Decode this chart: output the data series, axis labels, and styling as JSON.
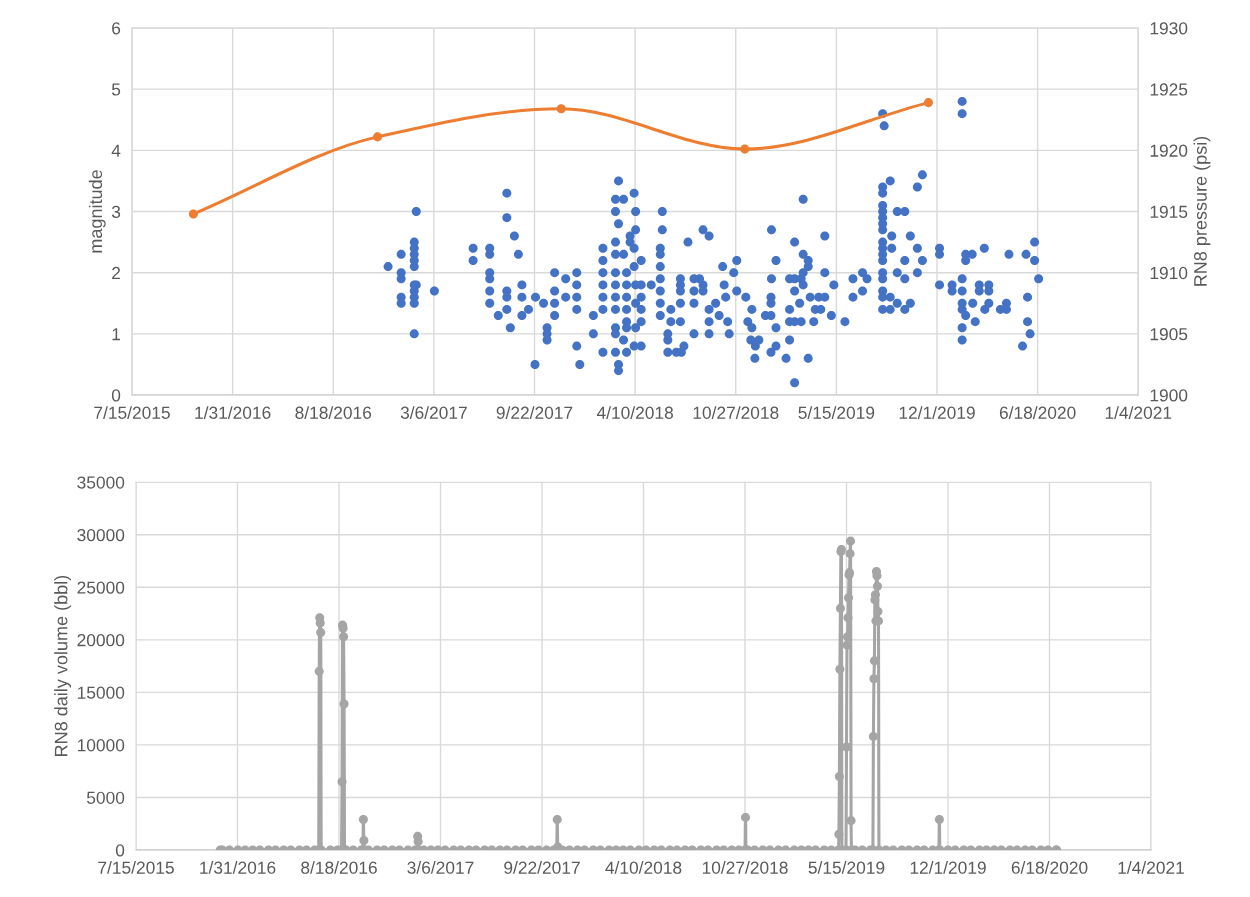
{
  "chart_data": [
    {
      "type": "scatter",
      "ylabel": "magnitude",
      "y2label": "RN8 pressure (psi)",
      "grid": true,
      "xlim": [
        "2015-07-15",
        "2021-01-04"
      ],
      "xticks": [
        {
          "value": "2015-07-15",
          "label": "7/15/2015"
        },
        {
          "value": "2016-01-31",
          "label": "1/31/2016"
        },
        {
          "value": "2016-08-18",
          "label": "8/18/2016"
        },
        {
          "value": "2017-03-06",
          "label": "3/6/2017"
        },
        {
          "value": "2017-09-22",
          "label": "9/22/2017"
        },
        {
          "value": "2018-04-10",
          "label": "4/10/2018"
        },
        {
          "value": "2018-10-27",
          "label": "10/27/2018"
        },
        {
          "value": "2019-05-15",
          "label": "5/15/2019"
        },
        {
          "value": "2019-12-01",
          "label": "12/1/2019"
        },
        {
          "value": "2020-06-18",
          "label": "6/18/2020"
        },
        {
          "value": "2021-01-04",
          "label": "1/4/2021"
        }
      ],
      "ylim": [
        0,
        6
      ],
      "yticks": [
        0,
        1,
        2,
        3,
        4,
        5,
        6
      ],
      "y2lim": [
        1900,
        1930
      ],
      "y2ticks": [
        1900,
        1905,
        1910,
        1915,
        1920,
        1925,
        1930
      ],
      "series": [
        {
          "color": "#4472c4",
          "marker": "circle",
          "x": [
            "2016-12-05",
            "2016-12-31",
            "2016-12-31",
            "2016-12-31",
            "2016-12-31",
            "2016-12-31",
            "2017-01-26",
            "2017-01-26",
            "2017-01-26",
            "2017-01-26",
            "2017-01-26",
            "2017-01-26",
            "2017-01-26",
            "2017-01-26",
            "2017-01-26",
            "2017-01-26",
            "2017-01-30",
            "2017-01-30",
            "2017-03-07",
            "2017-05-23",
            "2017-05-23",
            "2017-06-25",
            "2017-06-25",
            "2017-06-25",
            "2017-06-25",
            "2017-06-25",
            "2017-06-25",
            "2017-07-12",
            "2017-07-29",
            "2017-07-29",
            "2017-07-29",
            "2017-07-29",
            "2017-07-29",
            "2017-08-05",
            "2017-08-13",
            "2017-08-21",
            "2017-08-28",
            "2017-08-28",
            "2017-08-28",
            "2017-09-10",
            "2017-09-23",
            "2017-09-24",
            "2017-10-10",
            "2017-10-17",
            "2017-10-17",
            "2017-10-17",
            "2017-11-01",
            "2017-11-01",
            "2017-11-01",
            "2017-11-01",
            "2017-11-23",
            "2017-11-23",
            "2017-12-15",
            "2017-12-15",
            "2017-12-15",
            "2017-12-15",
            "2017-12-15",
            "2017-12-21",
            "2018-01-17",
            "2018-01-17",
            "2018-02-05",
            "2018-02-05",
            "2018-02-05",
            "2018-02-05",
            "2018-02-05",
            "2018-02-05",
            "2018-02-05",
            "2018-03-02",
            "2018-03-02",
            "2018-03-02",
            "2018-03-02",
            "2018-03-02",
            "2018-03-02",
            "2018-03-02",
            "2018-03-02",
            "2018-03-02",
            "2018-03-02",
            "2018-03-02",
            "2018-03-08",
            "2018-03-08",
            "2018-03-08",
            "2018-03-08",
            "2018-03-18",
            "2018-03-18",
            "2018-03-18",
            "2018-03-24",
            "2018-03-24",
            "2018-03-24",
            "2018-03-24",
            "2018-03-24",
            "2018-03-24",
            "2018-03-24",
            "2018-03-31",
            "2018-03-31",
            "2018-04-08",
            "2018-04-08",
            "2018-04-08",
            "2018-04-08",
            "2018-04-11",
            "2018-04-11",
            "2018-04-11",
            "2018-04-11",
            "2018-04-11",
            "2018-04-22",
            "2018-04-22",
            "2018-04-22",
            "2018-04-22",
            "2018-04-22",
            "2018-04-22",
            "2018-05-12",
            "2018-05-30",
            "2018-05-30",
            "2018-05-30",
            "2018-05-30",
            "2018-05-30",
            "2018-05-30",
            "2018-05-30",
            "2018-06-03",
            "2018-06-03",
            "2018-06-14",
            "2018-06-14",
            "2018-06-14",
            "2018-06-20",
            "2018-06-20",
            "2018-07-01",
            "2018-07-09",
            "2018-07-09",
            "2018-07-09",
            "2018-07-09",
            "2018-07-09",
            "2018-07-11",
            "2018-07-16",
            "2018-07-24",
            "2018-08-05",
            "2018-08-05",
            "2018-08-05",
            "2018-08-05",
            "2018-08-16",
            "2018-08-23",
            "2018-08-23",
            "2018-08-23",
            "2018-09-04",
            "2018-09-04",
            "2018-09-04",
            "2018-09-04",
            "2018-09-17",
            "2018-09-24",
            "2018-10-01",
            "2018-10-04",
            "2018-10-07",
            "2018-10-11",
            "2018-10-14",
            "2018-10-23",
            "2018-10-29",
            "2018-10-29",
            "2018-11-16",
            "2018-11-20",
            "2018-11-26",
            "2018-11-28",
            "2018-11-28",
            "2018-12-04",
            "2018-12-05",
            "2018-12-12",
            "2018-12-25",
            "2019-01-05",
            "2019-01-05",
            "2019-01-05",
            "2019-01-05",
            "2019-01-06",
            "2019-01-06",
            "2019-01-15",
            "2019-01-15",
            "2019-01-15",
            "2019-02-04",
            "2019-02-11",
            "2019-02-11",
            "2019-02-11",
            "2019-02-11",
            "2019-02-21",
            "2019-02-21",
            "2019-02-21",
            "2019-02-21",
            "2019-02-21",
            "2019-03-03",
            "2019-03-06",
            "2019-03-06",
            "2019-03-10",
            "2019-03-10",
            "2019-03-10",
            "2019-03-10",
            "2019-03-20",
            "2019-03-20",
            "2019-03-20",
            "2019-03-24",
            "2019-03-31",
            "2019-04-03",
            "2019-04-10",
            "2019-04-14",
            "2019-04-22",
            "2019-04-22",
            "2019-04-22",
            "2019-05-05",
            "2019-05-10",
            "2019-06-01",
            "2019-06-17",
            "2019-06-17",
            "2019-07-06",
            "2019-07-06",
            "2019-07-15",
            "2019-08-15",
            "2019-08-15",
            "2019-08-15",
            "2019-08-15",
            "2019-08-15",
            "2019-08-15",
            "2019-08-15",
            "2019-08-15",
            "2019-08-15",
            "2019-08-15",
            "2019-08-15",
            "2019-08-15",
            "2019-08-15",
            "2019-08-15",
            "2019-08-15",
            "2019-08-15",
            "2019-08-15",
            "2019-08-18",
            "2019-08-30",
            "2019-08-30",
            "2019-08-30",
            "2019-09-02",
            "2019-09-02",
            "2019-09-13",
            "2019-09-13",
            "2019-09-13",
            "2019-09-28",
            "2019-09-28",
            "2019-09-28",
            "2019-09-28",
            "2019-10-09",
            "2019-10-09",
            "2019-10-23",
            "2019-10-23",
            "2019-10-23",
            "2019-11-02",
            "2019-11-02",
            "2019-12-06",
            "2019-12-06",
            "2019-12-06",
            "2019-12-31",
            "2019-12-31",
            "2020-01-20",
            "2020-01-20",
            "2020-01-20",
            "2020-01-20",
            "2020-01-20",
            "2020-01-20",
            "2020-01-20",
            "2020-01-20",
            "2020-01-27",
            "2020-01-27",
            "2020-01-27",
            "2020-02-09",
            "2020-02-10",
            "2020-02-15",
            "2020-02-23",
            "2020-02-23",
            "2020-03-04",
            "2020-03-05",
            "2020-03-13",
            "2020-03-13",
            "2020-03-13",
            "2020-04-05",
            "2020-04-17",
            "2020-04-17",
            "2020-04-22",
            "2020-05-19",
            "2020-05-26",
            "2020-05-29",
            "2020-05-29",
            "2020-06-03",
            "2020-06-12",
            "2020-06-12",
            "2020-06-20"
          ],
          "values": [
            2.1,
            2.3,
            2.0,
            1.9,
            1.6,
            1.5,
            2.5,
            2.4,
            2.3,
            2.2,
            2.1,
            1.0,
            1.8,
            1.7,
            1.6,
            1.5,
            3.0,
            1.8,
            1.7,
            2.4,
            2.2,
            2.4,
            2.3,
            2.0,
            1.9,
            1.7,
            1.5,
            1.3,
            3.3,
            2.9,
            1.7,
            1.6,
            1.4,
            1.1,
            2.6,
            2.3,
            1.8,
            1.6,
            1.3,
            1.4,
            0.5,
            1.6,
            1.5,
            1.1,
            1.0,
            0.9,
            2.0,
            1.7,
            1.5,
            1.3,
            1.9,
            1.6,
            2.0,
            1.8,
            1.6,
            1.4,
            0.8,
            0.5,
            1.3,
            1.0,
            2.4,
            2.2,
            2.0,
            1.8,
            1.6,
            1.4,
            0.7,
            2.5,
            3.0,
            3.2,
            2.3,
            2.0,
            1.8,
            1.6,
            1.4,
            1.1,
            1.0,
            0.7,
            3.5,
            0.5,
            0.4,
            2.8,
            3.2,
            2.3,
            0.9,
            2.0,
            1.8,
            1.6,
            1.4,
            1.2,
            1.1,
            0.7,
            2.6,
            2.5,
            3.3,
            2.4,
            2.1,
            0.8,
            3.0,
            1.8,
            1.5,
            2.7,
            1.1,
            2.2,
            1.8,
            1.6,
            1.4,
            1.2,
            0.8,
            1.8,
            2.4,
            2.3,
            2.1,
            1.9,
            1.7,
            1.5,
            1.3,
            3.0,
            2.7,
            1.0,
            0.9,
            0.7,
            1.4,
            1.2,
            0.7,
            1.8,
            1.9,
            1.7,
            1.5,
            1.2,
            0.7,
            0.8,
            2.5,
            1.9,
            1.7,
            1.5,
            1.0,
            1.9,
            2.7,
            1.8,
            1.7,
            2.6,
            1.4,
            1.2,
            1.0,
            1.5,
            1.3,
            2.1,
            1.8,
            1.6,
            1.2,
            1.0,
            2.0,
            2.2,
            1.7,
            1.6,
            1.2,
            0.9,
            1.4,
            1.1,
            0.6,
            0.8,
            0.9,
            1.3,
            1.3,
            1.5,
            1.6,
            0.7,
            1.9,
            2.7,
            0.8,
            1.1,
            2.2,
            0.6,
            0.9,
            1.4,
            1.2,
            1.9,
            1.2,
            1.9,
            2.5,
            1.7,
            0.2,
            1.5,
            1.2,
            1.9,
            1.8,
            2.3,
            3.2,
            2.0,
            2.2,
            2.1,
            0.6,
            1.6,
            1.2,
            1.4,
            1.6,
            1.4,
            1.6,
            2.6,
            2.0,
            1.3,
            1.8,
            1.2,
            1.9,
            1.6,
            2.0,
            1.7,
            1.9,
            4.6,
            3.4,
            3.3,
            3.1,
            3.0,
            2.9,
            2.8,
            2.7,
            2.5,
            2.4,
            2.3,
            2.2,
            2.0,
            1.9,
            1.7,
            1.6,
            1.4,
            4.4,
            3.5,
            1.6,
            1.4,
            2.6,
            2.4,
            3.0,
            2.0,
            1.5,
            3.0,
            1.9,
            2.2,
            1.4,
            2.6,
            1.5,
            3.4,
            2.4,
            2.0,
            3.6,
            2.2,
            2.4,
            2.3,
            1.8,
            1.8,
            1.7,
            4.8,
            4.6,
            1.1,
            0.9,
            1.9,
            1.7,
            1.5,
            1.4,
            1.3,
            2.3,
            2.2,
            2.3,
            1.5,
            1.2,
            1.8,
            1.7,
            2.4,
            1.4,
            1.8,
            1.7,
            1.5,
            1.4,
            1.5,
            1.4,
            2.3,
            0.8,
            2.3,
            1.6,
            1.2,
            1.0,
            2.5,
            2.2,
            1.9
          ]
        },
        {
          "type": "line",
          "axis": "y2",
          "color": "#ed7d31",
          "marker": "circle",
          "x": [
            "2015-11-14",
            "2016-11-14",
            "2017-11-14",
            "2018-11-14",
            "2019-11-14"
          ],
          "values": [
            1914.8,
            1921.1,
            1923.4,
            1920.1,
            1923.9
          ]
        }
      ]
    },
    {
      "type": "line",
      "ylabel": "RN8 daily volume (bbl)",
      "grid": true,
      "xlim": [
        "2015-07-15",
        "2021-01-04"
      ],
      "xticks": [
        {
          "value": "2015-07-15",
          "label": "7/15/2015"
        },
        {
          "value": "2016-01-31",
          "label": "1/31/2016"
        },
        {
          "value": "2016-08-18",
          "label": "8/18/2016"
        },
        {
          "value": "2017-03-06",
          "label": "3/6/2017"
        },
        {
          "value": "2017-09-22",
          "label": "9/22/2017"
        },
        {
          "value": "2018-04-10",
          "label": "4/10/2018"
        },
        {
          "value": "2018-10-27",
          "label": "10/27/2018"
        },
        {
          "value": "2019-05-15",
          "label": "5/15/2019"
        },
        {
          "value": "2019-12-01",
          "label": "12/1/2019"
        },
        {
          "value": "2020-06-18",
          "label": "6/18/2020"
        },
        {
          "value": "2021-01-04",
          "label": "1/4/2021"
        }
      ],
      "ylim": [
        0,
        35000
      ],
      "yticks": [
        0,
        5000,
        10000,
        15000,
        20000,
        25000,
        30000,
        35000
      ],
      "series": [
        {
          "color": "#a5a5a5",
          "marker": "circle",
          "x": [
            "2015-12-28",
            "2016-01-01",
            "2016-01-15",
            "2016-02-01",
            "2016-02-15",
            "2016-03-01",
            "2016-03-15",
            "2016-04-01",
            "2016-04-15",
            "2016-05-01",
            "2016-05-15",
            "2016-06-01",
            "2016-06-15",
            "2016-07-01",
            "2016-07-09",
            "2016-07-10",
            "2016-07-11",
            "2016-07-12",
            "2016-07-13",
            "2016-07-14",
            "2016-08-01",
            "2016-08-15",
            "2016-08-23",
            "2016-08-24",
            "2016-08-25",
            "2016-08-26",
            "2016-08-27",
            "2016-08-28",
            "2016-08-29",
            "2016-09-01",
            "2016-09-15",
            "2016-10-01",
            "2016-10-04",
            "2016-10-05",
            "2016-10-06",
            "2016-10-07",
            "2016-10-15",
            "2016-11-01",
            "2016-11-15",
            "2016-12-01",
            "2016-12-15",
            "2017-01-01",
            "2017-01-15",
            "2017-01-19",
            "2017-01-20",
            "2017-01-21",
            "2017-01-22",
            "2017-02-01",
            "2017-02-15",
            "2017-03-01",
            "2017-03-15",
            "2017-04-01",
            "2017-04-15",
            "2017-05-01",
            "2017-05-15",
            "2017-06-01",
            "2017-06-15",
            "2017-07-01",
            "2017-07-15",
            "2017-08-01",
            "2017-08-15",
            "2017-09-01",
            "2017-09-15",
            "2017-10-01",
            "2017-10-15",
            "2017-10-21",
            "2017-10-22",
            "2017-10-23",
            "2017-10-24",
            "2017-11-01",
            "2017-11-15",
            "2017-12-01",
            "2017-12-15",
            "2018-01-01",
            "2018-01-15",
            "2018-02-01",
            "2018-02-15",
            "2018-03-01",
            "2018-03-15",
            "2018-04-01",
            "2018-04-15",
            "2018-05-01",
            "2018-05-15",
            "2018-06-01",
            "2018-06-15",
            "2018-07-01",
            "2018-07-15",
            "2018-08-01",
            "2018-08-15",
            "2018-09-01",
            "2018-09-15",
            "2018-10-01",
            "2018-10-15",
            "2018-10-27",
            "2018-10-28",
            "2018-10-29",
            "2018-11-01",
            "2018-11-15",
            "2018-12-01",
            "2018-12-15",
            "2019-01-01",
            "2019-01-15",
            "2019-02-01",
            "2019-02-15",
            "2019-03-01",
            "2019-03-15",
            "2019-04-01",
            "2019-04-15",
            "2019-04-29",
            "2019-04-30",
            "2019-05-01",
            "2019-05-02",
            "2019-05-03",
            "2019-05-04",
            "2019-05-05",
            "2019-05-06",
            "2019-05-14",
            "2019-05-15",
            "2019-05-16",
            "2019-05-17",
            "2019-05-18",
            "2019-05-19",
            "2019-05-20",
            "2019-05-21",
            "2019-05-22",
            "2019-05-23",
            "2019-05-24",
            "2019-05-25",
            "2019-06-01",
            "2019-06-15",
            "2019-07-01",
            "2019-07-06",
            "2019-07-07",
            "2019-07-08",
            "2019-07-09",
            "2019-07-10",
            "2019-07-11",
            "2019-07-12",
            "2019-07-13",
            "2019-07-14",
            "2019-07-15",
            "2019-07-16",
            "2019-07-17",
            "2019-07-18",
            "2019-08-01",
            "2019-08-15",
            "2019-09-01",
            "2019-09-15",
            "2019-10-01",
            "2019-10-15",
            "2019-11-01",
            "2019-11-13",
            "2019-11-14",
            "2019-11-15",
            "2019-12-01",
            "2019-12-15",
            "2020-01-01",
            "2020-01-15",
            "2020-02-01",
            "2020-02-15",
            "2020-03-01",
            "2020-03-15",
            "2020-04-01",
            "2020-04-15",
            "2020-05-01",
            "2020-05-15",
            "2020-06-01",
            "2020-06-15",
            "2020-07-01",
            "2020-07-02"
          ],
          "values": [
            0,
            0,
            0,
            0,
            0,
            0,
            0,
            0,
            0,
            0,
            0,
            0,
            0,
            0,
            0,
            17000,
            22100,
            21600,
            20700,
            0,
            0,
            0,
            0,
            6500,
            21400,
            21100,
            20300,
            13900,
            0,
            0,
            0,
            0,
            0,
            2900,
            900,
            0,
            0,
            0,
            0,
            0,
            0,
            0,
            0,
            0,
            1300,
            800,
            0,
            0,
            0,
            0,
            0,
            0,
            0,
            0,
            0,
            0,
            0,
            0,
            0,
            0,
            0,
            0,
            0,
            0,
            0,
            0,
            2900,
            300,
            0,
            0,
            0,
            0,
            0,
            0,
            0,
            0,
            0,
            0,
            0,
            0,
            0,
            0,
            0,
            0,
            0,
            0,
            0,
            0,
            0,
            0,
            0,
            0,
            0,
            0,
            3100,
            0,
            0,
            0,
            0,
            0,
            0,
            0,
            0,
            0,
            0,
            0,
            0,
            0,
            0,
            1500,
            7000,
            17200,
            23000,
            28400,
            28600,
            0,
            0,
            9800,
            19500,
            20300,
            22100,
            24000,
            26200,
            26400,
            28200,
            29400,
            2800,
            0,
            0,
            0,
            0,
            0,
            10800,
            16300,
            18000,
            23800,
            24300,
            21800,
            26500,
            26100,
            25100,
            22700,
            21800,
            0,
            0,
            0,
            0,
            0,
            0,
            0,
            0,
            0,
            2900,
            0,
            0,
            0,
            0,
            0,
            0,
            0,
            0,
            0,
            0,
            0,
            0,
            0,
            0,
            0,
            0,
            0
          ]
        }
      ]
    }
  ]
}
